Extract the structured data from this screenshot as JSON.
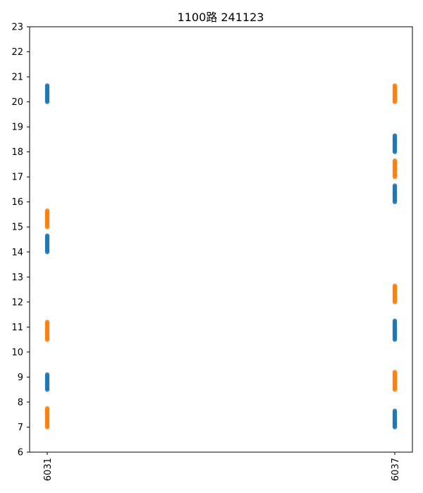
{
  "chart_data": {
    "type": "scatter",
    "title": "1100路  241123",
    "xlabel": "",
    "ylabel": "",
    "categories": [
      "6031",
      "6037"
    ],
    "ylim": [
      6,
      23
    ],
    "yticks": [
      6,
      7,
      8,
      9,
      10,
      11,
      12,
      13,
      14,
      15,
      16,
      17,
      18,
      19,
      20,
      21,
      22,
      23
    ],
    "grid": false,
    "legend": "none",
    "marker_step": 0.05,
    "series": [
      {
        "color": "#1f77b4",
        "segments": [
          {
            "x": "6031",
            "y_start": 20.0,
            "y_end": 20.65
          },
          {
            "x": "6031",
            "y_start": 14.0,
            "y_end": 14.65
          },
          {
            "x": "6031",
            "y_start": 8.5,
            "y_end": 9.1
          },
          {
            "x": "6037",
            "y_start": 18.0,
            "y_end": 18.65
          },
          {
            "x": "6037",
            "y_start": 16.0,
            "y_end": 16.65
          },
          {
            "x": "6037",
            "y_start": 10.5,
            "y_end": 11.25
          },
          {
            "x": "6037",
            "y_start": 7.0,
            "y_end": 7.65
          }
        ]
      },
      {
        "color": "#ff7f0e",
        "segments": [
          {
            "x": "6031",
            "y_start": 15.0,
            "y_end": 15.65
          },
          {
            "x": "6031",
            "y_start": 10.5,
            "y_end": 11.2
          },
          {
            "x": "6031",
            "y_start": 7.0,
            "y_end": 7.75
          },
          {
            "x": "6037",
            "y_start": 20.0,
            "y_end": 20.65
          },
          {
            "x": "6037",
            "y_start": 17.0,
            "y_end": 17.65
          },
          {
            "x": "6037",
            "y_start": 12.0,
            "y_end": 12.65
          },
          {
            "x": "6037",
            "y_start": 8.5,
            "y_end": 9.2
          }
        ]
      }
    ]
  }
}
